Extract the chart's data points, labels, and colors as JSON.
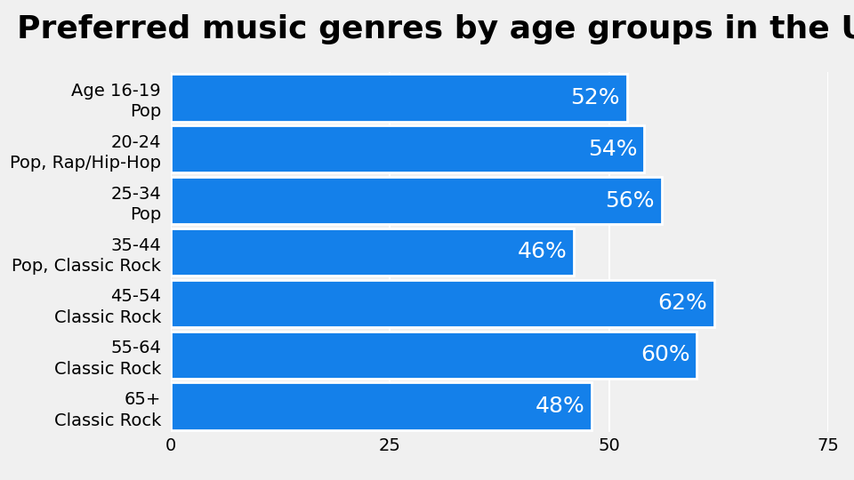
{
  "title": "Preferred music genres by age groups in the US",
  "title_fontsize": 26,
  "title_fontweight": "bold",
  "bar_color": "#1480EA",
  "background_color": "#F0F0F0",
  "plot_background": "#FFFFFF",
  "categories": [
    "Age 16-19\nPop",
    "20-24\nPop, Rap/Hip-Hop",
    "25-34\nPop",
    "35-44\nPop, Classic Rock",
    "45-54\nClassic Rock",
    "55-64\nClassic Rock",
    "65+\nClassic Rock"
  ],
  "values": [
    52,
    54,
    56,
    46,
    62,
    60,
    48
  ],
  "xlim": [
    0,
    75
  ],
  "xticks": [
    0,
    25,
    50,
    75
  ],
  "label_color": "#FFFFFF",
  "label_fontsize": 18,
  "tick_fontsize": 14,
  "ytick_fontsize": 14,
  "bar_height": 0.92,
  "bar_gap_color": "#FFFFFF"
}
